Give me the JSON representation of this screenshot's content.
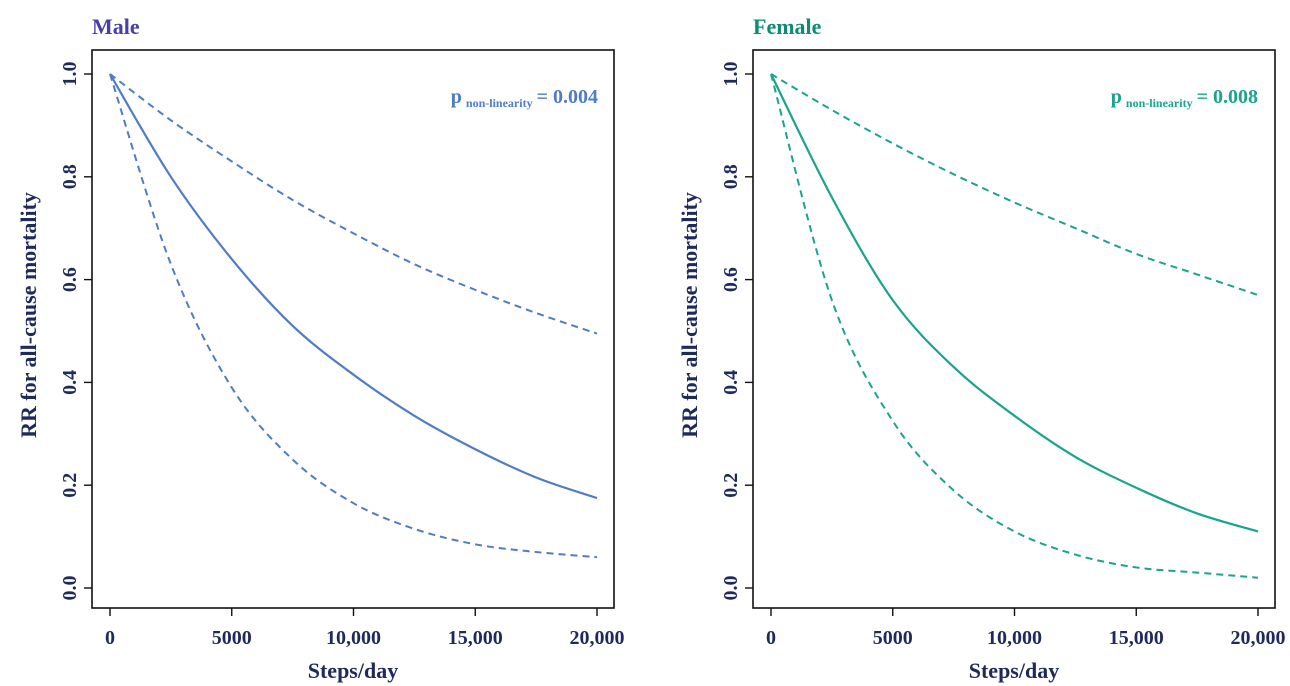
{
  "chart_data": [
    {
      "type": "line",
      "title": "Male",
      "title_color": "#4a3fa8",
      "color": "#4f7cc4",
      "xlabel": "Steps/day",
      "ylabel": "RR for all-cause mortality",
      "xlim": [
        0,
        20000
      ],
      "ylim": [
        0.0,
        1.0
      ],
      "x_ticks": [
        0,
        5000,
        10000,
        15000,
        20000
      ],
      "x_tick_labels": [
        "0",
        "5000",
        "10,000",
        "15,000",
        "20,000"
      ],
      "y_ticks": [
        0.0,
        0.2,
        0.4,
        0.6,
        0.8,
        1.0
      ],
      "y_tick_labels": [
        "0.0",
        "0.2",
        "0.4",
        "0.6",
        "0.8",
        "1.0"
      ],
      "annotation": {
        "p": "p",
        "sub": "non-linearity",
        "value": "= 0.004"
      },
      "x": [
        0,
        2500,
        5000,
        7500,
        10000,
        12500,
        15000,
        17500,
        20000
      ],
      "series": [
        {
          "style": "solid",
          "values": [
            1.0,
            0.8,
            0.64,
            0.51,
            0.415,
            0.335,
            0.27,
            0.215,
            0.175
          ]
        },
        {
          "style": "dashed",
          "values": [
            1.0,
            0.91,
            0.83,
            0.755,
            0.69,
            0.63,
            0.58,
            0.535,
            0.495
          ]
        },
        {
          "style": "dashed",
          "values": [
            1.0,
            0.63,
            0.39,
            0.25,
            0.165,
            0.115,
            0.085,
            0.07,
            0.06
          ]
        }
      ]
    },
    {
      "type": "line",
      "title": "Female",
      "title_color": "#0f8a74",
      "color": "#1aa48a",
      "xlabel": "Steps/day",
      "ylabel": "RR for all-cause mortality",
      "xlim": [
        0,
        20000
      ],
      "ylim": [
        0.0,
        1.0
      ],
      "x_ticks": [
        0,
        5000,
        10000,
        15000,
        20000
      ],
      "x_tick_labels": [
        "0",
        "5000",
        "10,000",
        "15,000",
        "20,000"
      ],
      "y_ticks": [
        0.0,
        0.2,
        0.4,
        0.6,
        0.8,
        1.0
      ],
      "y_tick_labels": [
        "0.0",
        "0.2",
        "0.4",
        "0.6",
        "0.8",
        "1.0"
      ],
      "annotation": {
        "p": "p",
        "sub": "non-linearity",
        "value": "= 0.008"
      },
      "x": [
        0,
        2500,
        5000,
        7500,
        10000,
        12500,
        15000,
        17500,
        20000
      ],
      "series": [
        {
          "style": "solid",
          "values": [
            1.0,
            0.76,
            0.56,
            0.43,
            0.335,
            0.255,
            0.195,
            0.145,
            0.11
          ]
        },
        {
          "style": "dashed",
          "values": [
            1.0,
            0.93,
            0.865,
            0.805,
            0.75,
            0.7,
            0.65,
            0.61,
            0.57
          ]
        },
        {
          "style": "dashed",
          "values": [
            1.0,
            0.56,
            0.325,
            0.19,
            0.11,
            0.065,
            0.04,
            0.03,
            0.02
          ]
        }
      ]
    }
  ]
}
